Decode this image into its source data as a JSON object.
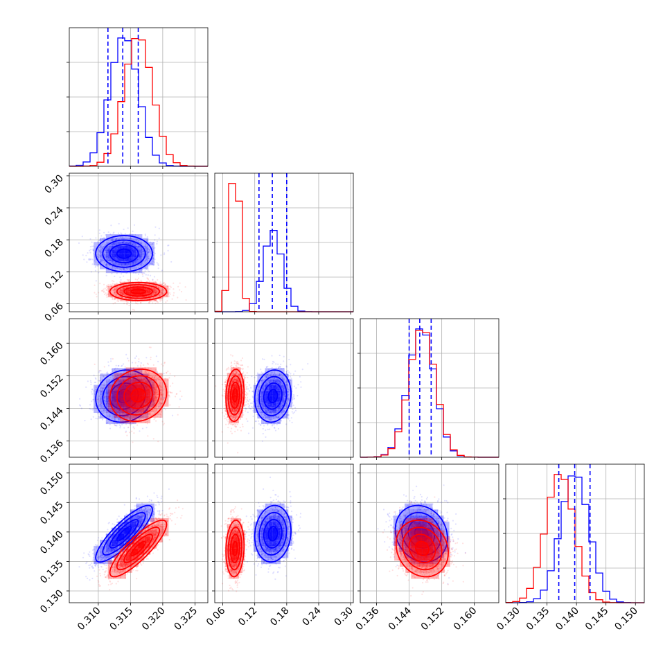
{
  "chart_data": {
    "type": "corner",
    "title": "",
    "grid": true,
    "colors": {
      "blue": "#0000ff",
      "red": "#ff0000",
      "quantile": "#0000ff"
    },
    "params": [
      {
        "range": [
          0.3055,
          0.327
        ],
        "ticks": [
          0.31,
          0.315,
          0.32,
          0.325
        ],
        "tick_labels": [
          "0.310",
          "0.315",
          "0.320",
          "0.325"
        ]
      },
      {
        "range": [
          0.045,
          0.305
        ],
        "ticks": [
          0.06,
          0.12,
          0.18,
          0.24,
          0.3
        ],
        "tick_labels": [
          "0.06",
          "0.12",
          "0.18",
          "0.24",
          "0.30"
        ]
      },
      {
        "range": [
          0.132,
          0.166
        ],
        "ticks": [
          0.136,
          0.144,
          0.152,
          0.16
        ],
        "tick_labels": [
          "0.136",
          "0.144",
          "0.152",
          "0.160"
        ]
      },
      {
        "range": [
          0.128,
          0.1515
        ],
        "ticks": [
          0.13,
          0.135,
          0.14,
          0.145,
          0.15
        ],
        "tick_labels": [
          "0.130",
          "0.135",
          "0.140",
          "0.145",
          "0.150"
        ]
      }
    ],
    "quantiles": [
      [
        0.3115,
        0.3138,
        0.3162
      ],
      [
        0.128,
        0.153,
        0.18
      ],
      [
        0.144,
        0.1466,
        0.1494
      ],
      [
        0.137,
        0.1397,
        0.1423
      ]
    ],
    "series": [
      {
        "color": "blue",
        "mean": [
          0.314,
          0.154,
          0.147,
          0.1397
        ],
        "sd": [
          0.0022,
          0.017,
          0.0032,
          0.0024
        ],
        "corr": [
          [
            1,
            0,
            0.1,
            0.85
          ],
          [
            0,
            1,
            0.1,
            0.1
          ],
          [
            0.1,
            0.1,
            1,
            -0.15
          ],
          [
            0.85,
            0.1,
            -0.15,
            1
          ]
        ]
      },
      {
        "color": "red",
        "mean": [
          0.3162,
          0.083,
          0.1472,
          0.1372
        ],
        "sd": [
          0.0022,
          0.0085,
          0.0032,
          0.0024
        ],
        "corr": [
          [
            1,
            0,
            0.1,
            0.85
          ],
          [
            0,
            1,
            0.1,
            0.1
          ],
          [
            0.1,
            0.1,
            1,
            -0.15
          ],
          [
            0.85,
            0.1,
            -0.15,
            1
          ]
        ]
      }
    ]
  }
}
